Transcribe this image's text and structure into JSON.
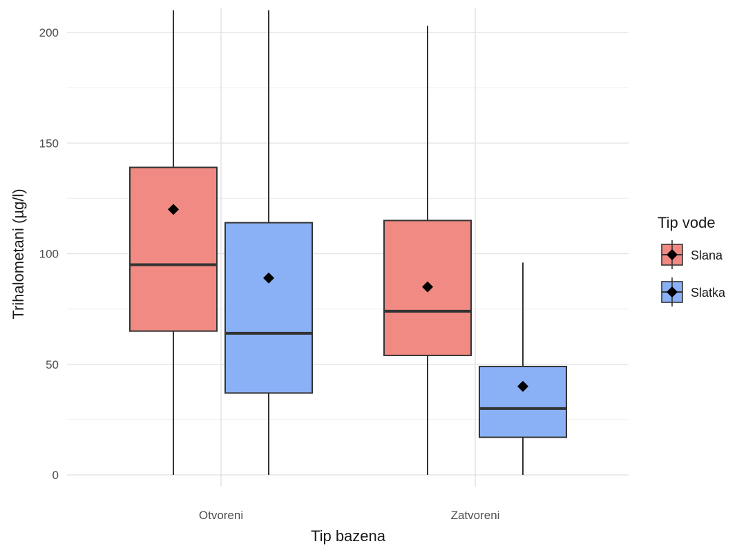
{
  "chart_data": {
    "type": "box",
    "xlabel": "Tip bazena",
    "ylabel": "Trihalometani (µg/l)",
    "categories": [
      "Otvoreni",
      "Zatvoreni"
    ],
    "ylim": [
      -5,
      210
    ],
    "yticks": [
      0,
      50,
      100,
      150,
      200
    ],
    "grid": true,
    "legend": {
      "title": "Tip vode",
      "position": "right"
    },
    "series": [
      {
        "name": "Slana",
        "color": "#F08A82",
        "boxes": [
          {
            "category": "Otvoreni",
            "whisker_low": 0,
            "q1": 65,
            "median": 95,
            "q3": 139,
            "whisker_high": 210,
            "mean": 120
          },
          {
            "category": "Zatvoreni",
            "whisker_low": 0,
            "q1": 54,
            "median": 74,
            "q3": 115,
            "whisker_high": 203,
            "mean": 85
          }
        ]
      },
      {
        "name": "Slatka",
        "color": "#8AB1F5",
        "boxes": [
          {
            "category": "Otvoreni",
            "whisker_low": 0,
            "q1": 37,
            "median": 64,
            "q3": 114,
            "whisker_high": 210,
            "mean": 89
          },
          {
            "category": "Zatvoreni",
            "whisker_low": 0,
            "q1": 17,
            "median": 30,
            "q3": 49,
            "whisker_high": 96,
            "mean": 40
          }
        ]
      }
    ]
  }
}
